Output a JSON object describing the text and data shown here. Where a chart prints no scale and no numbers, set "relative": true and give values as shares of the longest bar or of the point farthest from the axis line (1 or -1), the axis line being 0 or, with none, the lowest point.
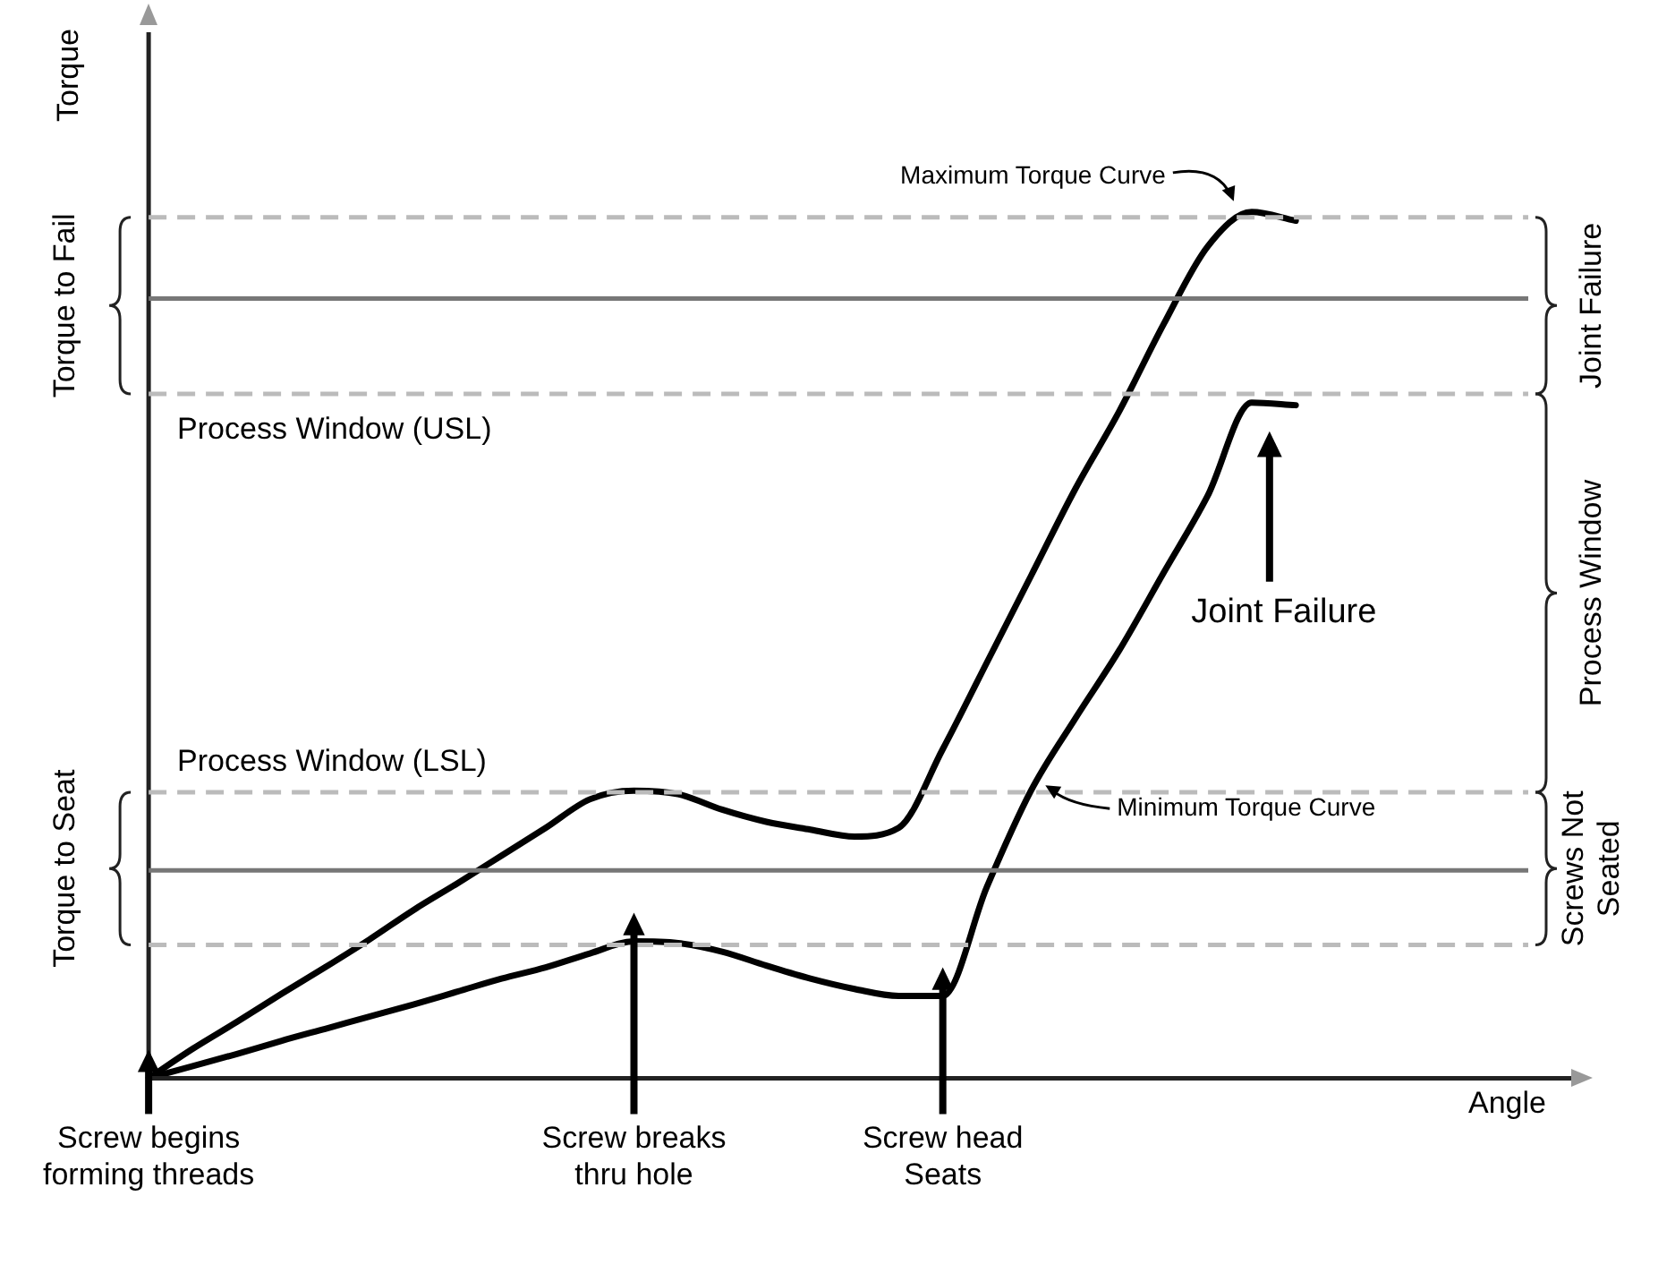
{
  "chart_data": {
    "type": "line",
    "relative": true,
    "xlabel": "Angle",
    "ylabel": "Torque",
    "marker": "none",
    "line_style": "solid",
    "legend": false,
    "grid": false,
    "categories": [
      "Screw begins forming threads",
      null,
      null,
      null,
      null,
      null,
      null,
      null,
      null,
      null,
      null,
      "Screw breaks thru hole",
      null,
      null,
      null,
      null,
      null,
      null,
      "Screw head Seats",
      null,
      null,
      null,
      null,
      null,
      null,
      null,
      null,
      null,
      null,
      null,
      null,
      null,
      null
    ],
    "series": [
      {
        "color": "#000000",
        "values": [
          0,
          0.034,
          0.065,
          0.097,
          0.128,
          0.16,
          0.194,
          0.225,
          0.257,
          0.289,
          0.322,
          0.332,
          0.328,
          0.31,
          0.296,
          0.287,
          0.279,
          0.289,
          0.38,
          0.48,
          0.58,
          0.68,
          0.77,
          0.87,
          0.96,
          1,
          0.99,
          null,
          null,
          null,
          null,
          null,
          null
        ]
      },
      {
        "color": "#000000",
        "values": [
          0,
          0.014,
          0.028,
          0.043,
          0.057,
          0.071,
          0.085,
          0.1,
          0.115,
          0.128,
          0.144,
          0.158,
          0.156,
          0.146,
          0.13,
          0.115,
          0.103,
          0.095,
          0.095,
          0.221,
          0.332,
          0.415,
          0.494,
          0.583,
          0.672,
          0.78,
          0.777,
          null,
          null,
          null,
          null,
          null,
          null
        ]
      }
    ],
    "ref_lines": [
      {
        "axis": "y",
        "value": 0.994,
        "color": "#bbbbbb",
        "line_style": "dashed"
      },
      {
        "axis": "y",
        "value": 0.9,
        "color": "#777777",
        "line_style": "solid"
      },
      {
        "axis": "y",
        "value": 0.79,
        "label": "Process Window (USL)",
        "color": "#bbbbbb",
        "line_style": "dashed"
      },
      {
        "axis": "y",
        "value": 0.33,
        "label": "Process Window (LSL)",
        "color": "#bbbbbb",
        "line_style": "dashed"
      },
      {
        "axis": "y",
        "value": 0.24,
        "color": "#777777",
        "line_style": "solid"
      },
      {
        "axis": "y",
        "value": 0.154,
        "color": "#bbbbbb",
        "line_style": "dashed"
      }
    ],
    "annotations": [
      "Joint Failure",
      "Maximum Torque Curve",
      "Minimum Torque Curve",
      "Joint Failure",
      "Process Window",
      "Screws Not Seated",
      "Torque to Fail",
      "Torque to Seat"
    ]
  }
}
